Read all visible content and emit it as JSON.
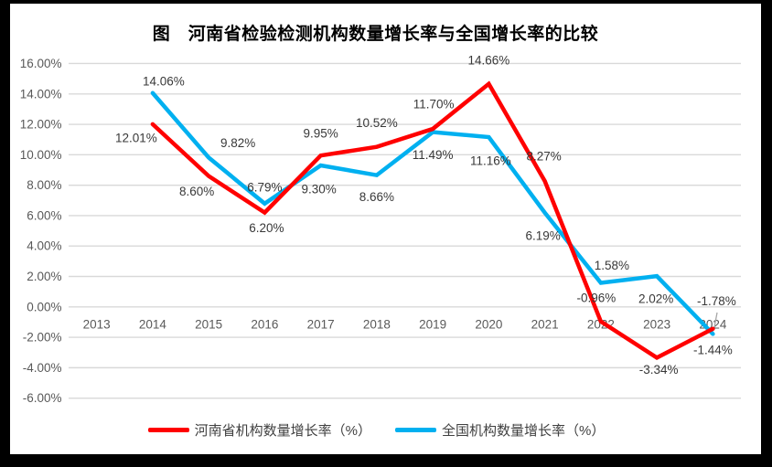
{
  "page": {
    "background": "#000000",
    "panel_background": "#ffffff"
  },
  "chart_data": {
    "type": "line",
    "title": "图　河南省检验检测机构数量增长率与全国增长率的比较",
    "categories": [
      "2013",
      "2014",
      "2015",
      "2016",
      "2017",
      "2018",
      "2019",
      "2020",
      "2021",
      "2022",
      "2023",
      "2024"
    ],
    "series": [
      {
        "name": "河南省机构数量增长率（%）",
        "color": "#FF0000",
        "values": [
          null,
          12.01,
          8.6,
          6.2,
          9.95,
          10.52,
          11.7,
          14.66,
          8.27,
          -0.96,
          -3.34,
          -1.44
        ]
      },
      {
        "name": "全国机构数量增长率（%）",
        "color": "#00B0F0",
        "values": [
          null,
          14.06,
          9.82,
          6.79,
          9.3,
          8.66,
          11.49,
          11.16,
          6.19,
          1.58,
          2.02,
          -1.78
        ]
      }
    ],
    "ylim": [
      -6,
      16
    ],
    "ytick_step": 2,
    "ytick_labels": [
      "16.00%",
      "14.00%",
      "12.00%",
      "10.00%",
      "8.00%",
      "6.00%",
      "4.00%",
      "2.00%",
      "0.00%",
      "-2.00%",
      "-4.00%",
      "-6.00%"
    ],
    "grid": true,
    "data_labels": true,
    "data_label_format": "0.00%",
    "legend_position": "bottom"
  },
  "colors": {
    "grid": "#D9D9D9",
    "axis_text": "#595959",
    "data_label_text": "#383838",
    "title_text": "#000000",
    "legend_text": "#404040",
    "leader_line": "#A6A6A6"
  }
}
